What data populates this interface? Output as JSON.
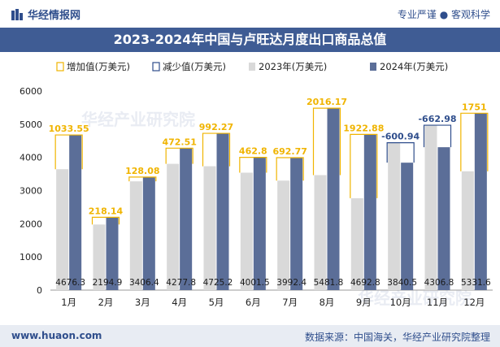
{
  "header": {
    "brand": "华经情报网",
    "tagline": "专业严谨 ● 客观科学",
    "title": "2023-2024年中国与卢旺达月度出口商品总值"
  },
  "footer": {
    "website": "www.huaon.com",
    "source": "数据来源：中国海关，华经产业研究院整理"
  },
  "watermark": "华经产业研究院",
  "colors": {
    "increase": "#f0b400",
    "decrease": "#2f4e8c",
    "bar2023": "#d9d9d9",
    "bar2024": "#5b6e98",
    "label2024": "#1a1a1a"
  },
  "chart_data": {
    "type": "bar",
    "categories": [
      "1月",
      "2月",
      "3月",
      "4月",
      "5月",
      "6月",
      "7月",
      "8月",
      "9月",
      "10月",
      "11月",
      "12月"
    ],
    "ylim": [
      0,
      6000
    ],
    "yticks": [
      0,
      1000,
      2000,
      3000,
      4000,
      5000,
      6000
    ],
    "legend": [
      "增加值(万美元)",
      "减少值(万美元)",
      "2023年(万美元)",
      "2024年(万美元)"
    ],
    "legend_position": "top",
    "series": [
      {
        "name": "2023年(万美元)",
        "values": [
          3642.75,
          1976.76,
          3278.32,
          3805.29,
          3732.93,
          3538.7,
          3299.63,
          3465.63,
          2769.92,
          4441.44,
          4969.78,
          3580.6
        ]
      },
      {
        "name": "2024年(万美元)",
        "values": [
          4676.3,
          2194.9,
          3406.4,
          4277.8,
          4725.2,
          4001.5,
          3992.4,
          5481.8,
          4692.8,
          3840.5,
          4306.8,
          5331.6
        ]
      }
    ],
    "diff_labels": [
      "1033.55",
      "218.14",
      "128.08",
      "472.51",
      "992.27",
      "462.8",
      "692.77",
      "2016.17",
      "1922.88",
      "-600.94",
      "-662.98",
      "1751"
    ],
    "diff_types": [
      "increase",
      "increase",
      "increase",
      "increase",
      "increase",
      "increase",
      "increase",
      "increase",
      "increase",
      "decrease",
      "decrease",
      "increase"
    ],
    "value_labels": [
      "4676.3",
      "2194.9",
      "3406.4",
      "4277.8",
      "4725.2",
      "4001.5",
      "3992.4",
      "5481.8",
      "4692.8",
      "3840.5",
      "4306.8",
      "5331.6"
    ]
  }
}
